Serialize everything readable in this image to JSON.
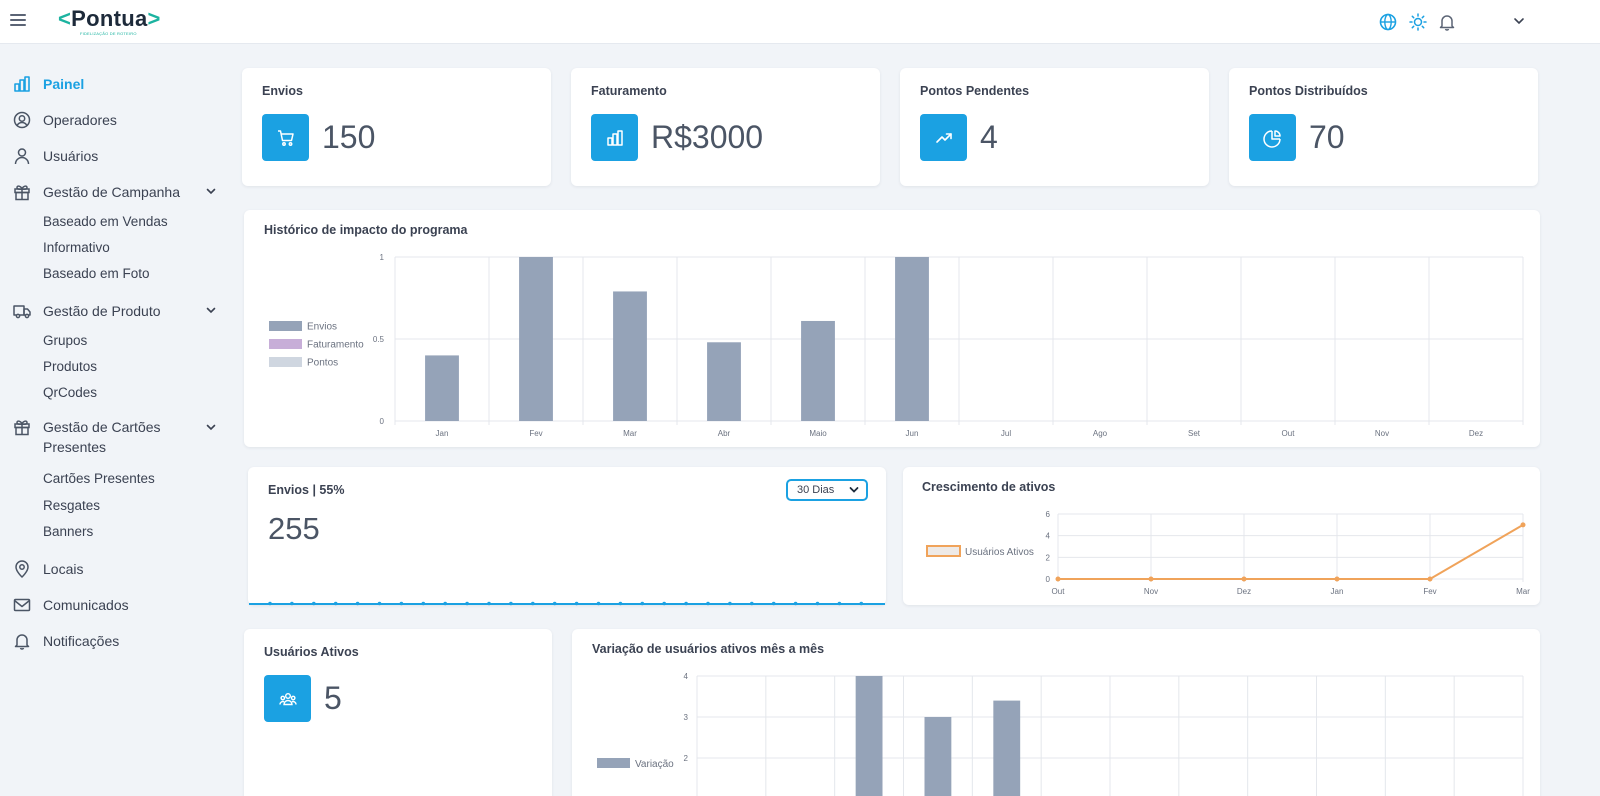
{
  "header": {
    "logo_text": "Pontua",
    "logo_subtext": "FIDELIZAÇÃO DE ROTEIRO",
    "icons": [
      "globe-icon",
      "sun-icon",
      "bell-icon",
      "chevron-down-icon"
    ]
  },
  "sidebar": {
    "items": [
      {
        "label": "Painel",
        "icon": "bar-chart-icon",
        "active": true
      },
      {
        "label": "Operadores",
        "icon": "user-circle-icon"
      },
      {
        "label": "Usuários",
        "icon": "user-icon"
      },
      {
        "label": "Gestão de Campanha",
        "icon": "gift-icon",
        "expandable": true,
        "children": [
          "Baseado em Vendas",
          "Informativo",
          "Baseado em Foto"
        ]
      },
      {
        "label": "Gestão de Produto",
        "icon": "truck-icon",
        "expandable": true,
        "children": [
          "Grupos",
          "Produtos",
          "QrCodes"
        ]
      },
      {
        "label": "Gestão de Cartões Presentes",
        "label_line1": "Gestão de Cartões",
        "label_line2": "Presentes",
        "icon": "gift-icon",
        "expandable": true,
        "children": [
          "Cartões Presentes",
          "Resgates",
          "Banners"
        ]
      },
      {
        "label": "Locais",
        "icon": "map-pin-icon"
      },
      {
        "label": "Comunicados",
        "icon": "mail-icon"
      },
      {
        "label": "Notificações",
        "icon": "bell-icon"
      }
    ]
  },
  "stats": [
    {
      "title": "Envios",
      "value": "150",
      "icon": "cart-icon"
    },
    {
      "title": "Faturamento",
      "value": "R$3000",
      "icon": "bar-chart-icon"
    },
    {
      "title": "Pontos Pendentes",
      "value": "4",
      "icon": "trending-up-icon"
    },
    {
      "title": "Pontos Distribuídos",
      "value": "70",
      "icon": "pie-chart-icon"
    }
  ],
  "envios_card": {
    "title": "Envios | 55%",
    "value": "255",
    "period_select": "30 Dias",
    "line_color": "#1ba1e2"
  },
  "usuarios_card": {
    "title": "Usuários Ativos",
    "value": "5",
    "icon": "users-icon"
  },
  "colors": {
    "accent": "#1ba1e2",
    "bar": "#95a3b8",
    "line_orange": "#f0a35a"
  },
  "chart_data": [
    {
      "type": "bar",
      "title": "Histórico de impacto do programa",
      "categories": [
        "Jan",
        "Fev",
        "Mar",
        "Abr",
        "Maio",
        "Jun",
        "Jul",
        "Ago",
        "Set",
        "Out",
        "Nov",
        "Dez"
      ],
      "series": [
        {
          "name": "Envios",
          "color": "#95a3b8",
          "values": [
            0.4,
            1,
            0.79,
            0.48,
            0.61,
            1,
            0,
            0,
            0,
            0,
            0,
            0
          ]
        },
        {
          "name": "Faturamento",
          "color": "#c7aed8",
          "values": [
            0,
            0,
            0,
            0,
            0,
            0,
            0,
            0,
            0,
            0,
            0,
            0
          ]
        },
        {
          "name": "Pontos",
          "color": "#cfd6e0",
          "values": [
            0,
            0,
            0,
            0,
            0,
            0,
            0,
            0,
            0,
            0,
            0,
            0
          ]
        }
      ],
      "yticks": [
        "0",
        "0.5",
        "1"
      ],
      "ylim": [
        0,
        1
      ],
      "grid": true,
      "legend": "left"
    },
    {
      "type": "line",
      "title": "Crescimento de ativos",
      "categories": [
        "Out",
        "Nov",
        "Dez",
        "Jan",
        "Fev",
        "Mar"
      ],
      "series": [
        {
          "name": "Usuários Ativos",
          "color": "#f0a35a",
          "values": [
            0,
            0,
            0,
            0,
            0,
            5
          ]
        }
      ],
      "yticks": [
        "0",
        "2",
        "4",
        "6"
      ],
      "ylim": [
        0,
        6
      ],
      "grid": true,
      "legend": "left"
    },
    {
      "type": "bar",
      "title": "Variação de usuários ativos mês a mês",
      "series": [
        {
          "name": "Variação",
          "color": "#95a3b8",
          "values": [
            null,
            null,
            4,
            3,
            3.4,
            null,
            null,
            null,
            null,
            null,
            null,
            null
          ]
        }
      ],
      "yticks": [
        "2",
        "3",
        "4"
      ],
      "grid": true,
      "legend": "left"
    }
  ]
}
